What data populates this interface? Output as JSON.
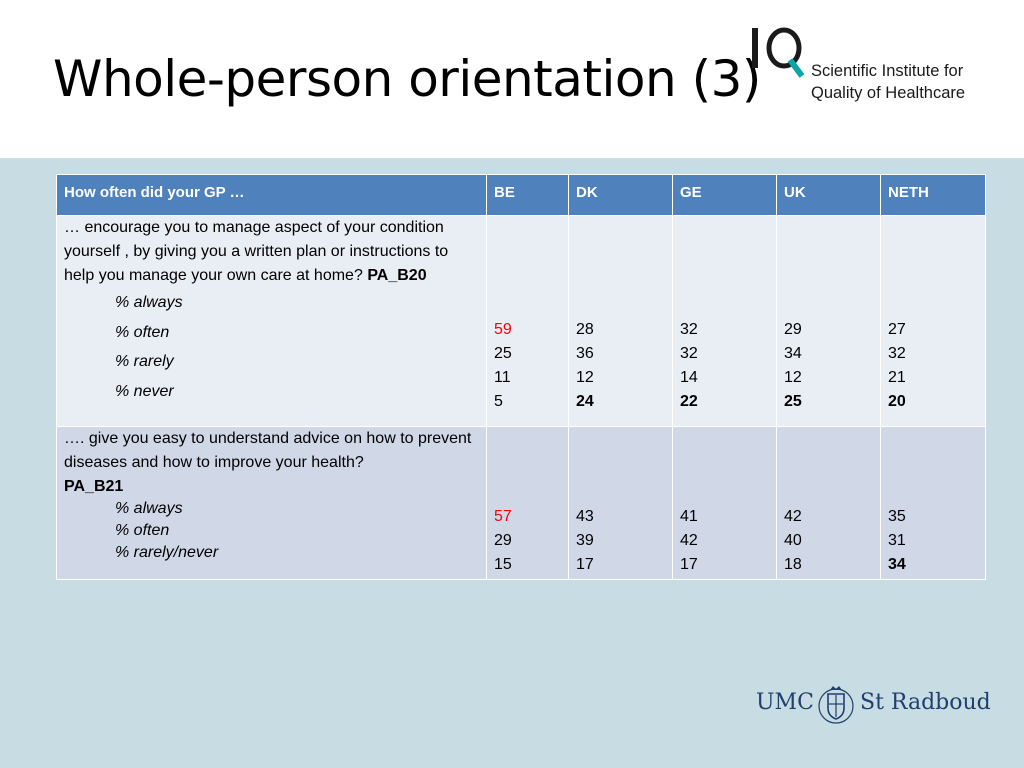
{
  "slide": {
    "title": "Whole-person orientation (3)"
  },
  "org": {
    "logo_letters": "IQ",
    "name_line1": "Scientific Institute for",
    "name_line2": "Quality of Healthcare"
  },
  "table": {
    "headers": [
      "How often did your GP …",
      "BE",
      "DK",
      "GE",
      "UK",
      "NETH"
    ],
    "rows": [
      {
        "question": "… encourage you to manage aspect of your condition yourself , by giving you a written plan or instructions to help you manage your own care at home?",
        "code": "PA_B20",
        "options": [
          "% always",
          "% often",
          "% rarely",
          "% never"
        ],
        "values": {
          "BE": [
            "59",
            "25",
            "11",
            "5"
          ],
          "DK": [
            "28",
            "36",
            "12",
            "24"
          ],
          "GE": [
            "32",
            "32",
            "14",
            "22"
          ],
          "UK": [
            "29",
            "34",
            "12",
            "25"
          ],
          "NETH": [
            "27",
            "32",
            "21",
            "20"
          ]
        }
      },
      {
        "question": "…. give you easy to understand advice on how to prevent diseases and how to improve your health?",
        "code": "PA_B21",
        "options": [
          "% always",
          "% often",
          "% rarely/never"
        ],
        "values": {
          "BE": [
            "57",
            "29",
            "15"
          ],
          "DK": [
            "43",
            "39",
            "17"
          ],
          "GE": [
            "41",
            "42",
            "17"
          ],
          "UK": [
            "42",
            "40",
            "18"
          ],
          "NETH": [
            "35",
            "31",
            "34"
          ]
        }
      }
    ]
  },
  "footer": {
    "logo_left": "UMC",
    "logo_right": "St Radboud"
  },
  "colors": {
    "header_fill": "#4f81bd",
    "row1_fill": "#e9edf4",
    "row2_fill": "#d0d8e8",
    "background": "#c7dde3",
    "highlight_red": "#ff0000",
    "brand_teal": "#0aa5a9",
    "umc_navy": "#1f3f6e"
  }
}
